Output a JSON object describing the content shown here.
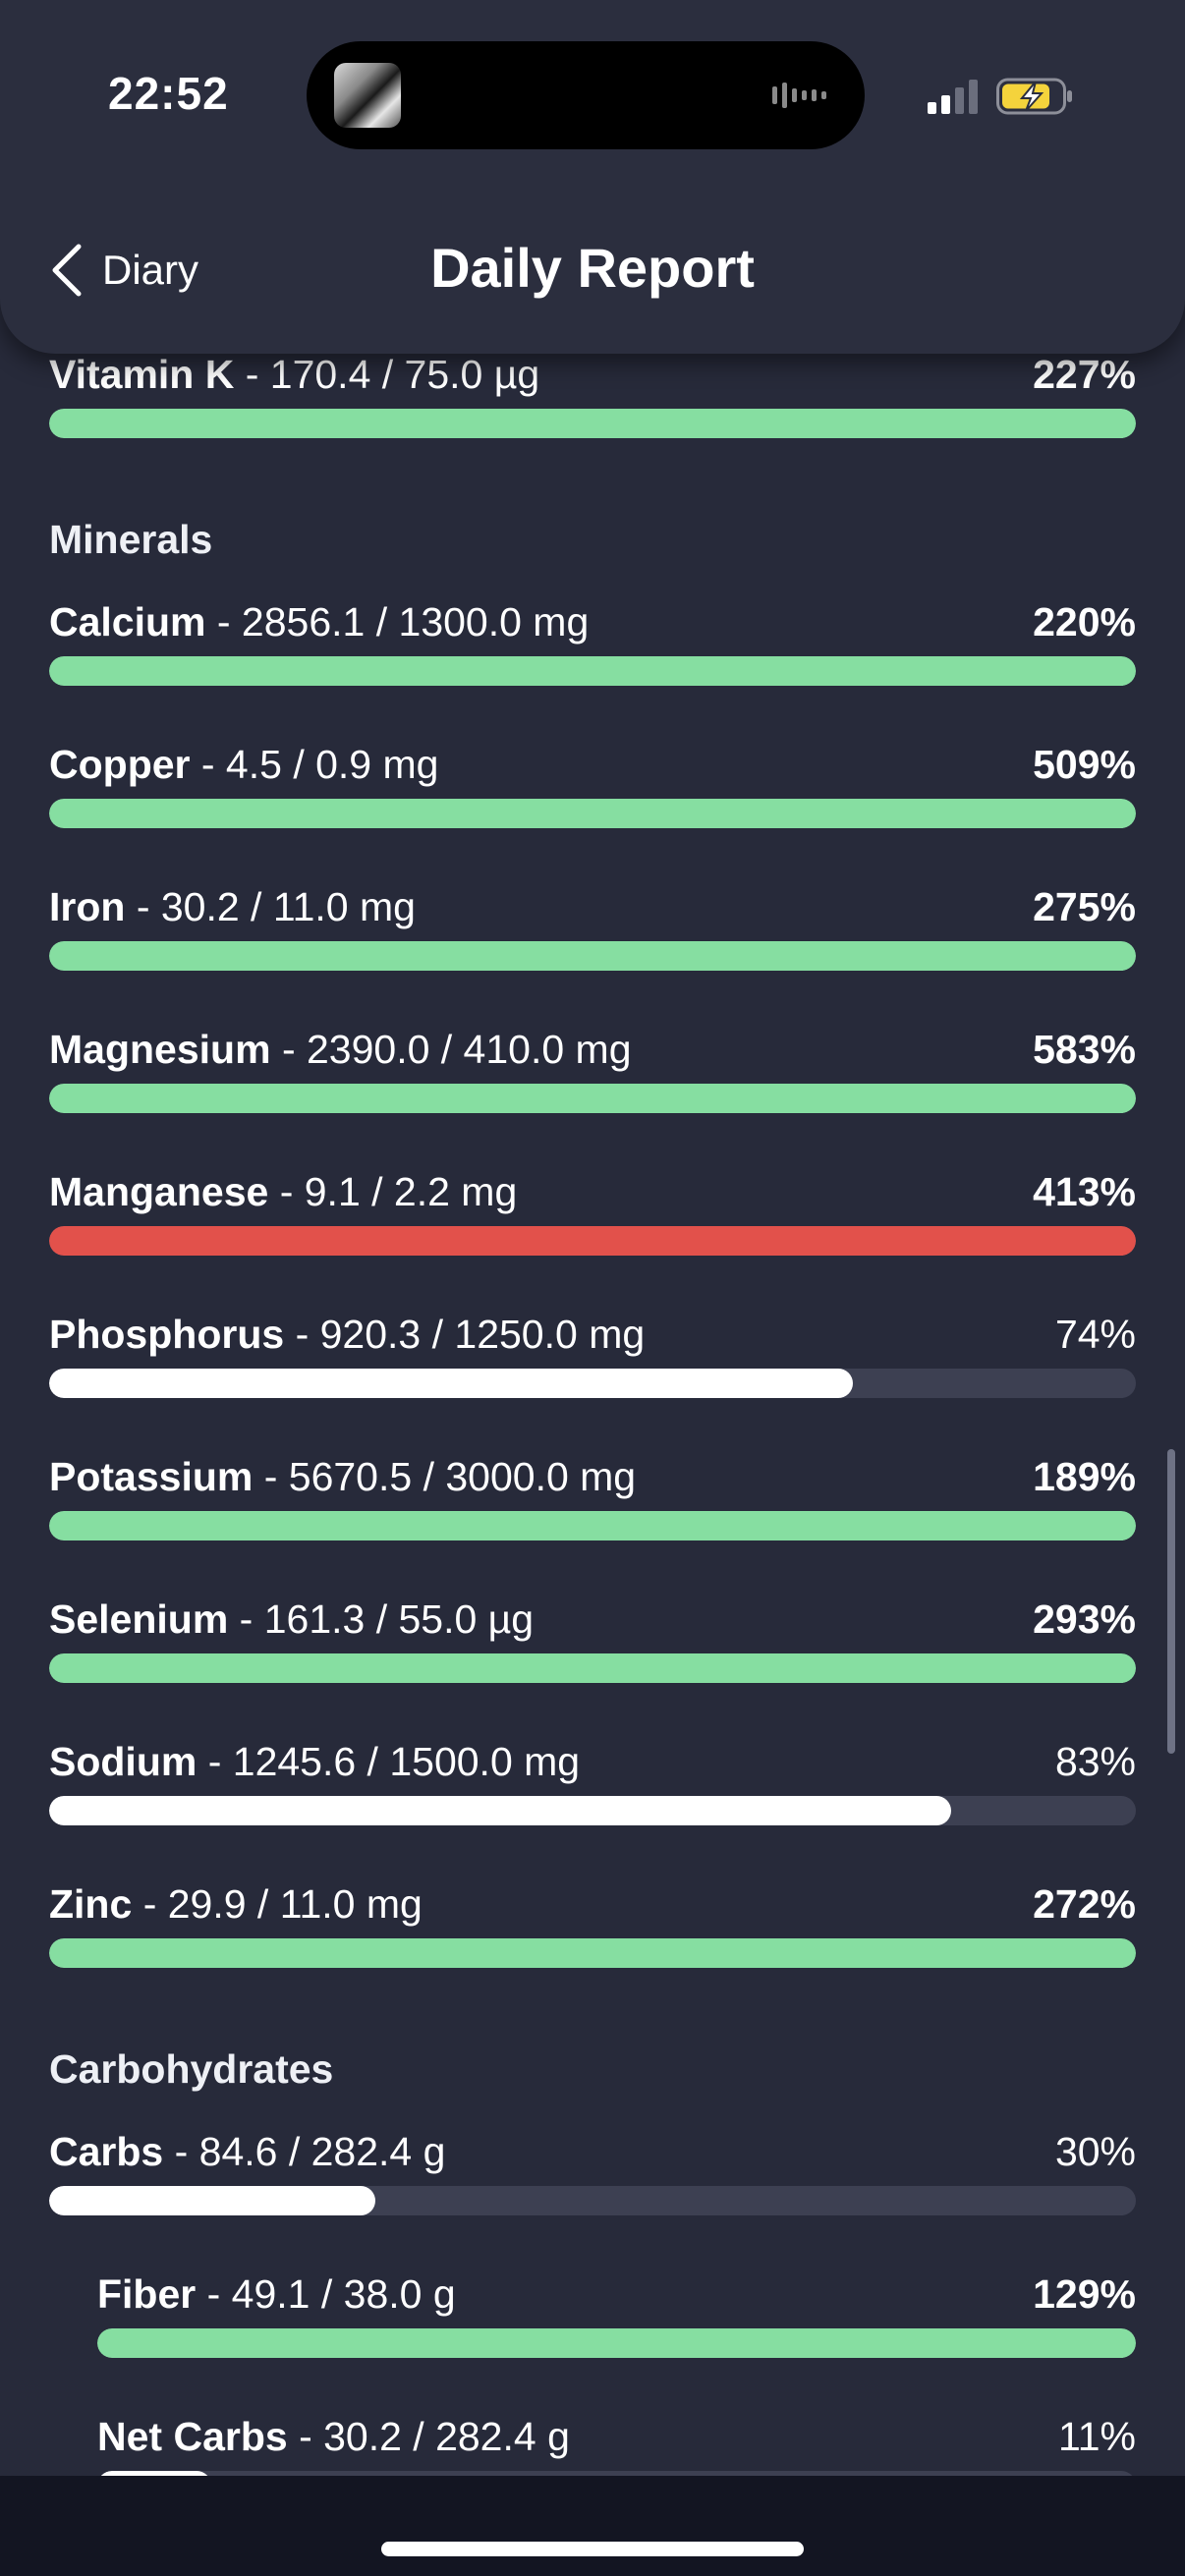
{
  "status": {
    "time": "22:52"
  },
  "header": {
    "back_label": "Diary",
    "title": "Daily Report"
  },
  "colors": {
    "good": "#86dea1",
    "over": "#e2514b",
    "partial": "#ffffff",
    "track": "#3d4052"
  },
  "sections": {
    "minerals": "Minerals",
    "carbohydrates": "Carbohydrates"
  },
  "nutrients": [
    {
      "name": "Vitamin K",
      "detail": " - 170.4 / 75.0 µg",
      "percent": "227%",
      "fill": 1.0,
      "status": "good"
    },
    {
      "name": "Calcium",
      "detail": " - 2856.1 / 1300.0 mg",
      "percent": "220%",
      "fill": 1.0,
      "status": "good"
    },
    {
      "name": "Copper",
      "detail": " - 4.5 / 0.9 mg",
      "percent": "509%",
      "fill": 1.0,
      "status": "good"
    },
    {
      "name": "Iron",
      "detail": " - 30.2 / 11.0 mg",
      "percent": "275%",
      "fill": 1.0,
      "status": "good"
    },
    {
      "name": "Magnesium",
      "detail": " - 2390.0 / 410.0 mg",
      "percent": "583%",
      "fill": 1.0,
      "status": "good"
    },
    {
      "name": "Manganese",
      "detail": " - 9.1 / 2.2 mg",
      "percent": "413%",
      "fill": 1.0,
      "status": "over"
    },
    {
      "name": "Phosphorus",
      "detail": " - 920.3 / 1250.0 mg",
      "percent": "74%",
      "fill": 0.74,
      "status": "partial"
    },
    {
      "name": "Potassium",
      "detail": " - 5670.5 / 3000.0 mg",
      "percent": "189%",
      "fill": 1.0,
      "status": "good"
    },
    {
      "name": "Selenium",
      "detail": " - 161.3 / 55.0 µg",
      "percent": "293%",
      "fill": 1.0,
      "status": "good"
    },
    {
      "name": "Sodium",
      "detail": " - 1245.6 / 1500.0 mg",
      "percent": "83%",
      "fill": 0.83,
      "status": "partial"
    },
    {
      "name": "Zinc",
      "detail": " - 29.9 / 11.0 mg",
      "percent": "272%",
      "fill": 1.0,
      "status": "good"
    },
    {
      "name": "Carbs",
      "detail": " - 84.6 / 282.4 g",
      "percent": "30%",
      "fill": 0.3,
      "status": "partial"
    },
    {
      "name": "Fiber",
      "detail": " - 49.1 / 38.0 g",
      "percent": "129%",
      "fill": 1.0,
      "status": "good"
    },
    {
      "name": "Net Carbs",
      "detail": " - 30.2 / 282.4 g",
      "percent": "11%",
      "fill": 0.11,
      "status": "partial"
    }
  ]
}
